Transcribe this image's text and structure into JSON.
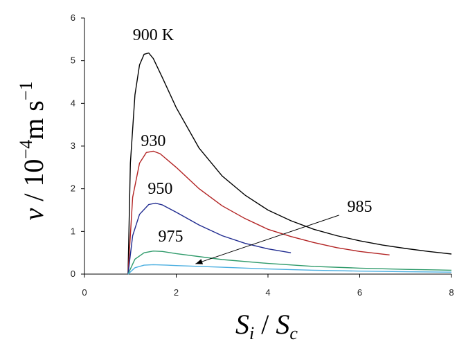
{
  "chart_data": {
    "type": "line",
    "xlim": [
      0,
      8
    ],
    "ylim": [
      0,
      6
    ],
    "xticks": [
      0,
      2,
      4,
      6,
      8
    ],
    "yticks": [
      0,
      1,
      2,
      3,
      4,
      5,
      6
    ],
    "grid": false,
    "xlabel": "S_i / S_c",
    "ylabel": "v / 10^-4 m s^-1",
    "series": [
      {
        "name": "900 K",
        "color": "#000000",
        "points": [
          [
            0.95,
            0
          ],
          [
            1.0,
            2.6
          ],
          [
            1.1,
            4.2
          ],
          [
            1.2,
            4.9
          ],
          [
            1.3,
            5.15
          ],
          [
            1.4,
            5.18
          ],
          [
            1.5,
            5.05
          ],
          [
            1.7,
            4.6
          ],
          [
            2.0,
            3.9
          ],
          [
            2.5,
            2.95
          ],
          [
            3.0,
            2.3
          ],
          [
            3.5,
            1.85
          ],
          [
            4.0,
            1.5
          ],
          [
            4.5,
            1.25
          ],
          [
            5.0,
            1.05
          ],
          [
            5.5,
            0.9
          ],
          [
            6.0,
            0.78
          ],
          [
            6.5,
            0.68
          ],
          [
            7.0,
            0.6
          ],
          [
            7.5,
            0.53
          ],
          [
            8.0,
            0.47
          ]
        ]
      },
      {
        "name": "930",
        "color": "#b22222",
        "points": [
          [
            0.95,
            0
          ],
          [
            1.05,
            1.8
          ],
          [
            1.2,
            2.6
          ],
          [
            1.35,
            2.85
          ],
          [
            1.5,
            2.88
          ],
          [
            1.65,
            2.82
          ],
          [
            2.0,
            2.5
          ],
          [
            2.5,
            2.0
          ],
          [
            3.0,
            1.6
          ],
          [
            3.5,
            1.3
          ],
          [
            4.0,
            1.05
          ],
          [
            4.5,
            0.88
          ],
          [
            5.0,
            0.74
          ],
          [
            5.5,
            0.62
          ],
          [
            6.0,
            0.53
          ],
          [
            6.65,
            0.45
          ]
        ]
      },
      {
        "name": "950",
        "color": "#1f2a8f",
        "points": [
          [
            0.95,
            0
          ],
          [
            1.05,
            0.9
          ],
          [
            1.2,
            1.4
          ],
          [
            1.4,
            1.63
          ],
          [
            1.55,
            1.66
          ],
          [
            1.7,
            1.62
          ],
          [
            2.0,
            1.45
          ],
          [
            2.5,
            1.15
          ],
          [
            3.0,
            0.9
          ],
          [
            3.5,
            0.72
          ],
          [
            4.0,
            0.59
          ],
          [
            4.5,
            0.5
          ]
        ]
      },
      {
        "name": "975",
        "color": "#2e9a6a",
        "points": [
          [
            0.95,
            0
          ],
          [
            1.1,
            0.35
          ],
          [
            1.3,
            0.5
          ],
          [
            1.5,
            0.54
          ],
          [
            1.7,
            0.53
          ],
          [
            2.0,
            0.48
          ],
          [
            3.0,
            0.34
          ],
          [
            4.0,
            0.25
          ],
          [
            5.0,
            0.18
          ],
          [
            6.0,
            0.14
          ],
          [
            7.0,
            0.11
          ],
          [
            8.0,
            0.09
          ]
        ]
      },
      {
        "name": "985",
        "color": "#4aaee0",
        "points": [
          [
            0.95,
            0
          ],
          [
            1.1,
            0.15
          ],
          [
            1.3,
            0.21
          ],
          [
            1.5,
            0.22
          ],
          [
            1.8,
            0.21
          ],
          [
            2.0,
            0.2
          ],
          [
            3.0,
            0.16
          ],
          [
            4.0,
            0.12
          ],
          [
            5.0,
            0.09
          ],
          [
            6.0,
            0.07
          ],
          [
            7.0,
            0.055
          ],
          [
            8.0,
            0.045
          ]
        ]
      }
    ],
    "annotations": [
      {
        "text": "900 K",
        "x": 1.5,
        "y": 5.48
      },
      {
        "text": "930",
        "x": 1.5,
        "y": 3.0
      },
      {
        "text": "950",
        "x": 1.65,
        "y": 1.88
      },
      {
        "text": "975",
        "x": 1.88,
        "y": 0.76
      },
      {
        "text": "985",
        "x": 6.0,
        "y": 1.46
      }
    ],
    "arrow": {
      "from": [
        5.55,
        1.38
      ],
      "to": [
        2.42,
        0.24
      ]
    }
  }
}
